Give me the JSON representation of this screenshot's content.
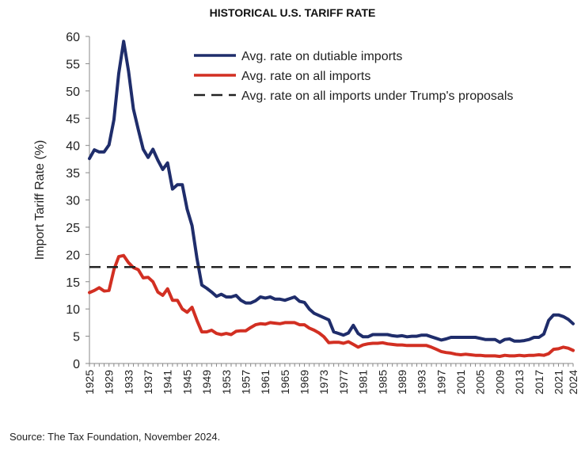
{
  "title": "HISTORICAL U.S. TARIFF RATE",
  "source": "Source: The Tax Foundation, November 2024.",
  "chart_data": {
    "type": "line",
    "ylabel": "Import Tariff Rate (%)",
    "xlabel": "",
    "ylim": [
      0,
      60
    ],
    "xlim": [
      1925,
      2024
    ],
    "yticks": [
      0,
      5,
      10,
      15,
      20,
      25,
      30,
      35,
      40,
      45,
      50,
      55,
      60
    ],
    "xtick_labels": [
      "1925",
      "1929",
      "1933",
      "1937",
      "1941",
      "1945",
      "1949",
      "1953",
      "1957",
      "1961",
      "1965",
      "1969",
      "1973",
      "1977",
      "1981",
      "1985",
      "1989",
      "1993",
      "1997",
      "2001",
      "2005",
      "2009",
      "2013",
      "2017",
      "2021",
      "2024"
    ],
    "grid": false,
    "legend": "top-right",
    "series": [
      {
        "name": "Avg. rate on dutiable imports",
        "color": "#1f2d6b",
        "style": "solid",
        "x": [
          1925,
          1926,
          1927,
          1928,
          1929,
          1930,
          1931,
          1932,
          1933,
          1934,
          1935,
          1936,
          1937,
          1938,
          1939,
          1940,
          1941,
          1942,
          1943,
          1944,
          1945,
          1946,
          1947,
          1948,
          1949,
          1950,
          1951,
          1952,
          1953,
          1954,
          1955,
          1956,
          1957,
          1958,
          1959,
          1960,
          1961,
          1962,
          1963,
          1964,
          1965,
          1966,
          1967,
          1968,
          1969,
          1970,
          1971,
          1972,
          1973,
          1974,
          1975,
          1976,
          1977,
          1978,
          1979,
          1980,
          1981,
          1982,
          1983,
          1984,
          1985,
          1986,
          1987,
          1988,
          1989,
          1990,
          1991,
          1992,
          1993,
          1994,
          1995,
          1996,
          1997,
          1998,
          1999,
          2000,
          2001,
          2002,
          2003,
          2004,
          2005,
          2006,
          2007,
          2008,
          2009,
          2010,
          2011,
          2012,
          2013,
          2014,
          2015,
          2016,
          2017,
          2018,
          2019,
          2020,
          2021,
          2022,
          2023,
          2024
        ],
        "values": [
          37.6,
          39.2,
          38.8,
          38.8,
          40.1,
          44.7,
          53.2,
          59.1,
          53.6,
          46.7,
          42.9,
          39.3,
          37.8,
          39.3,
          37.3,
          35.6,
          36.8,
          32.0,
          32.8,
          32.8,
          28.3,
          25.3,
          19.3,
          14.4,
          13.8,
          13.1,
          12.3,
          12.7,
          12.2,
          12.2,
          12.5,
          11.6,
          11.1,
          11.1,
          11.5,
          12.2,
          12.0,
          12.2,
          11.8,
          11.8,
          11.6,
          11.9,
          12.2,
          11.4,
          11.2,
          10.0,
          9.2,
          8.8,
          8.4,
          8.0,
          5.8,
          5.5,
          5.2,
          5.6,
          7.0,
          5.5,
          4.9,
          4.9,
          5.3,
          5.3,
          5.3,
          5.3,
          5.1,
          5.0,
          5.1,
          4.9,
          5.0,
          5.0,
          5.2,
          5.2,
          4.9,
          4.6,
          4.3,
          4.5,
          4.8,
          4.8,
          4.8,
          4.8,
          4.8,
          4.8,
          4.6,
          4.4,
          4.4,
          4.4,
          3.9,
          4.4,
          4.5,
          4.1,
          4.1,
          4.2,
          4.4,
          4.8,
          4.8,
          5.4,
          7.9,
          8.9,
          8.9,
          8.6,
          8.1,
          7.3
        ]
      },
      {
        "name": "Avg. rate on all imports",
        "color": "#d22f22",
        "style": "solid",
        "x": [
          1925,
          1926,
          1927,
          1928,
          1929,
          1930,
          1931,
          1932,
          1933,
          1934,
          1935,
          1936,
          1937,
          1938,
          1939,
          1940,
          1941,
          1942,
          1943,
          1944,
          1945,
          1946,
          1947,
          1948,
          1949,
          1950,
          1951,
          1952,
          1953,
          1954,
          1955,
          1956,
          1957,
          1958,
          1959,
          1960,
          1961,
          1962,
          1963,
          1964,
          1965,
          1966,
          1967,
          1968,
          1969,
          1970,
          1971,
          1972,
          1973,
          1974,
          1975,
          1976,
          1977,
          1978,
          1979,
          1980,
          1981,
          1982,
          1983,
          1984,
          1985,
          1986,
          1987,
          1988,
          1989,
          1990,
          1991,
          1992,
          1993,
          1994,
          1995,
          1996,
          1997,
          1998,
          1999,
          2000,
          2001,
          2002,
          2003,
          2004,
          2005,
          2006,
          2007,
          2008,
          2009,
          2010,
          2011,
          2012,
          2013,
          2014,
          2015,
          2016,
          2017,
          2018,
          2019,
          2020,
          2021,
          2022,
          2023,
          2024
        ],
        "values": [
          13.0,
          13.4,
          13.9,
          13.3,
          13.4,
          17.2,
          19.6,
          19.8,
          18.5,
          17.6,
          17.2,
          15.7,
          15.8,
          15.0,
          13.1,
          12.5,
          13.7,
          11.6,
          11.6,
          10.0,
          9.4,
          10.3,
          7.9,
          5.8,
          5.8,
          6.1,
          5.5,
          5.3,
          5.5,
          5.3,
          5.9,
          6.0,
          6.0,
          6.6,
          7.1,
          7.3,
          7.2,
          7.5,
          7.4,
          7.3,
          7.5,
          7.5,
          7.5,
          7.1,
          7.1,
          6.5,
          6.1,
          5.6,
          4.9,
          3.8,
          3.9,
          3.9,
          3.7,
          4.0,
          3.5,
          3.0,
          3.4,
          3.6,
          3.7,
          3.7,
          3.8,
          3.6,
          3.5,
          3.4,
          3.4,
          3.3,
          3.3,
          3.3,
          3.3,
          3.3,
          3.0,
          2.6,
          2.2,
          2.0,
          1.9,
          1.7,
          1.6,
          1.7,
          1.6,
          1.5,
          1.5,
          1.4,
          1.4,
          1.4,
          1.3,
          1.5,
          1.4,
          1.4,
          1.5,
          1.4,
          1.5,
          1.5,
          1.6,
          1.5,
          1.8,
          2.6,
          2.7,
          3.0,
          2.8,
          2.4
        ]
      },
      {
        "name": "Avg. rate on all imports under Trump's proposals",
        "color": "#222222",
        "style": "dashed",
        "x": [
          1925,
          2024
        ],
        "values": [
          17.7,
          17.7
        ]
      }
    ]
  }
}
